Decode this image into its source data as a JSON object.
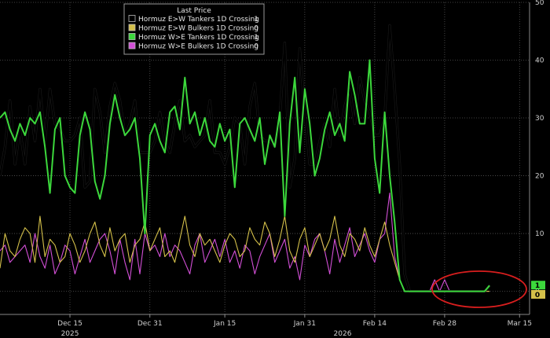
{
  "chart_data": {
    "type": "line",
    "legend": {
      "title": "Last Price",
      "placement": "top-left",
      "entries": [
        {
          "label": "Hormuz E>W Tankers 1D Crossing",
          "last": "1",
          "color": "#000000"
        },
        {
          "label": "Hormuz E>W Bulkers 1D Crossing",
          "last": "0",
          "color": "#d4c04a"
        },
        {
          "label": "Hormuz W>E Tankers 1D Crossing",
          "last": "1",
          "color": "#3cd83c"
        },
        {
          "label": "Hormuz W>E Bulkers 1D Crossing",
          "last": "0",
          "color": "#d24fd6"
        }
      ]
    },
    "x_axis": {
      "ticks": [
        "Dec 15",
        "Dec 31",
        "Jan 15",
        "Jan 31",
        "Feb 14",
        "Feb 28",
        "Mar 15"
      ],
      "year_labels": [
        "2025",
        "2026"
      ],
      "range": [
        "2025-12-01",
        "2026-03-17"
      ]
    },
    "y_axis": {
      "ticks": [
        "0",
        "10",
        "20",
        "30",
        "40",
        "50"
      ],
      "range": [
        -4,
        50
      ],
      "position": "right"
    },
    "end_labels": [
      {
        "text": "1",
        "value": 1,
        "bg": "#3cd83c"
      },
      {
        "text": "0",
        "value": -0.6,
        "bg": "#d4c04a"
      }
    ],
    "annotation": {
      "type": "ellipse",
      "color": "#d81e1e",
      "around": "2026-02-28 to 2026-03-15, values 0-1"
    },
    "series": [
      {
        "name": "Hormuz E>W Tankers 1D Crossing",
        "color": "#000000",
        "x0": "2025-12-01",
        "step_days": 1,
        "values": [
          20,
          25,
          33,
          22,
          28,
          22,
          32,
          26,
          35,
          26,
          35,
          29,
          28,
          26,
          26,
          27,
          30,
          18,
          19,
          35,
          31,
          24,
          32,
          36,
          33,
          27,
          29,
          33,
          24,
          24,
          24,
          26,
          31,
          26,
          24,
          29,
          33,
          26,
          27,
          25,
          26,
          27,
          33,
          24,
          24,
          22,
          25,
          30,
          29,
          22,
          32,
          36,
          27,
          26,
          26,
          25,
          30,
          43,
          18,
          23,
          42,
          31,
          22,
          22,
          26,
          29,
          25,
          35,
          27,
          32,
          35,
          29,
          37,
          33,
          31,
          27,
          27,
          30,
          46,
          35,
          22,
          3,
          0,
          0,
          0,
          0,
          0,
          0,
          0,
          0,
          0,
          0,
          0,
          0,
          0,
          0,
          0,
          0,
          1
        ]
      },
      {
        "name": "Hormuz E>W Bulkers 1D Crossing",
        "color": "#d4c04a",
        "x0": "2025-12-01",
        "step_days": 1,
        "values": [
          4,
          10,
          7,
          6,
          9,
          11,
          10,
          5,
          13,
          6,
          9,
          8,
          5,
          6,
          10,
          8,
          5,
          7,
          10,
          12,
          8,
          6,
          11,
          7,
          9,
          10,
          5,
          8,
          9,
          12,
          7,
          9,
          11,
          6,
          7,
          5,
          9,
          13,
          8,
          6,
          10,
          8,
          9,
          7,
          5,
          8,
          10,
          9,
          6,
          7,
          11,
          9,
          8,
          12,
          10,
          6,
          9,
          13,
          7,
          5,
          9,
          11,
          6,
          8,
          10,
          7,
          9,
          13,
          8,
          6,
          10,
          9,
          7,
          11,
          8,
          6,
          9,
          12,
          8,
          5,
          2,
          0,
          0,
          0,
          0,
          0,
          0,
          0,
          0,
          0,
          0,
          0,
          0,
          0,
          0,
          0,
          0,
          0,
          0
        ]
      },
      {
        "name": "Hormuz W>E Tankers 1D Crossing",
        "color": "#3cd83c",
        "x0": "2025-12-01",
        "step_days": 1,
        "values": [
          30,
          31,
          28,
          26,
          29,
          27,
          30,
          29,
          31,
          25,
          17,
          28,
          30,
          20,
          18,
          17,
          27,
          31,
          28,
          19,
          16,
          20,
          29,
          34,
          30,
          27,
          28,
          30,
          23,
          10,
          27,
          29,
          26,
          24,
          31,
          32,
          28,
          37,
          29,
          31,
          27,
          30,
          26,
          25,
          29,
          26,
          28,
          18,
          29,
          30,
          28,
          26,
          30,
          22,
          27,
          25,
          31,
          13,
          29,
          37,
          24,
          35,
          29,
          20,
          23,
          28,
          31,
          27,
          29,
          26,
          38,
          34,
          29,
          29,
          40,
          23,
          17,
          31,
          20,
          12,
          2,
          0,
          0,
          0,
          0,
          0,
          0,
          0,
          0,
          0,
          0,
          0,
          0,
          0,
          0,
          0,
          0,
          0,
          1
        ]
      },
      {
        "name": "Hormuz W>E Bulkers 1D Crossing",
        "color": "#d24fd6",
        "x0": "2025-12-01",
        "step_days": 1,
        "values": [
          7,
          8,
          5,
          6,
          7,
          8,
          5,
          10,
          6,
          4,
          8,
          3,
          5,
          8,
          7,
          3,
          6,
          9,
          5,
          7,
          9,
          10,
          7,
          3,
          9,
          5,
          2,
          9,
          3,
          10,
          7,
          8,
          6,
          10,
          6,
          8,
          7,
          5,
          3,
          8,
          10,
          5,
          7,
          9,
          6,
          9,
          5,
          7,
          4,
          8,
          7,
          3,
          6,
          8,
          10,
          5,
          7,
          9,
          4,
          6,
          2,
          8,
          6,
          9,
          10,
          7,
          3,
          9,
          5,
          8,
          11,
          6,
          8,
          10,
          7,
          5,
          9,
          10,
          17,
          6,
          2,
          0,
          0,
          0,
          0,
          0,
          0,
          2,
          0,
          2,
          0,
          0,
          0,
          0,
          0,
          0,
          0,
          0,
          0
        ]
      }
    ]
  }
}
